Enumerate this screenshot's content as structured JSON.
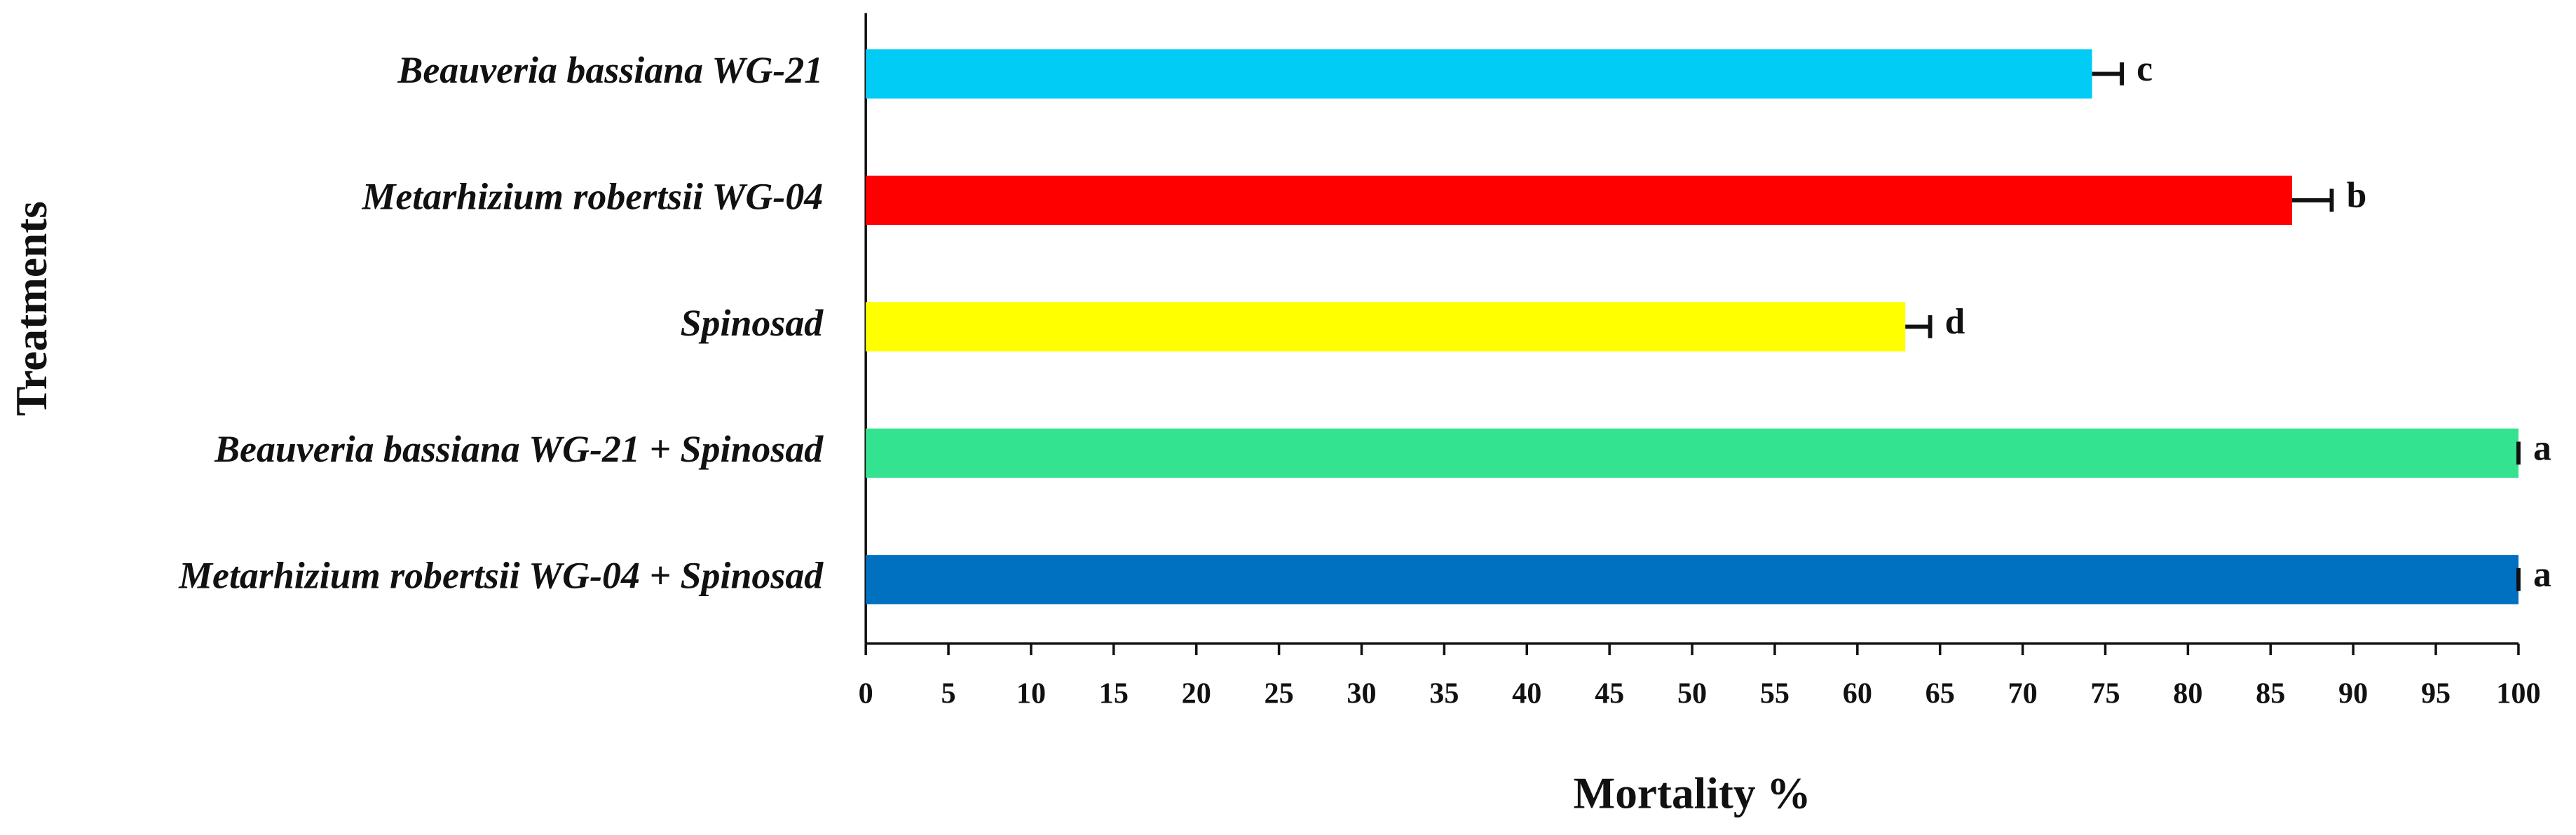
{
  "chart_data": {
    "type": "barh",
    "xlabel": "Mortality %",
    "ylabel": "Treatments",
    "categories": [
      "Beauveria bassiana WG-21",
      "Metarhizium robertsii WG-04",
      "Spinosad",
      "Beauveria bassiana WG-21 + Spinosad",
      "Metarhizium robertsii WG-04 + Spinosad"
    ],
    "values": [
      74.2,
      86.3,
      62.9,
      100,
      100
    ],
    "errors": [
      1.8,
      2.4,
      1.5,
      0,
      0
    ],
    "colors": [
      "#00ccf5",
      "#ff0000",
      "#ffff00",
      "#33e38f",
      "#0070c0"
    ],
    "annotations": [
      "c",
      "b",
      "d",
      "a",
      "a"
    ],
    "xlim": [
      0,
      100
    ],
    "xticks": [
      0,
      5,
      10,
      15,
      20,
      25,
      30,
      35,
      40,
      45,
      50,
      55,
      60,
      65,
      70,
      75,
      80,
      85,
      90,
      95,
      100
    ]
  }
}
